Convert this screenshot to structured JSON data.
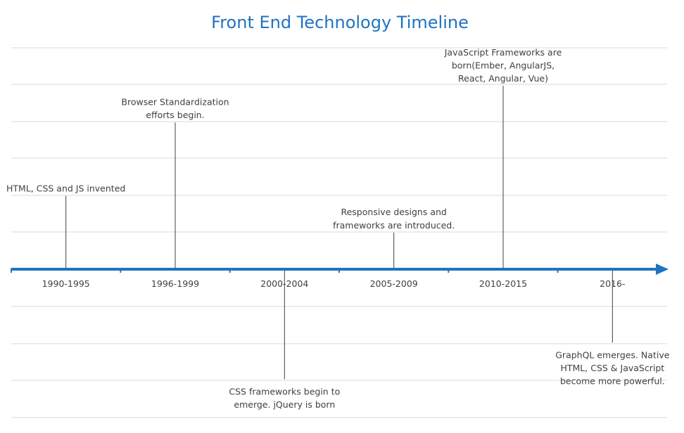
{
  "chart_data": {
    "type": "timeline",
    "title": "Front End Technology Timeline",
    "categories": [
      "1990-1995",
      "1996-1999",
      "2000-2004",
      "2005-2009",
      "2010-2015",
      "2016-"
    ],
    "events": [
      {
        "period": "1990-1995",
        "side": "above",
        "level": 2,
        "lines": [
          "HTML, CSS and JS invented"
        ]
      },
      {
        "period": "1996-1999",
        "side": "above",
        "level": 4,
        "lines": [
          "Browser Standardization",
          "efforts begin."
        ]
      },
      {
        "period": "2000-2004",
        "side": "below",
        "level": 3,
        "lines": [
          "CSS frameworks begin to",
          "emerge. jQuery is born"
        ]
      },
      {
        "period": "2005-2009",
        "side": "above",
        "level": 1,
        "lines": [
          "Responsive designs and",
          "frameworks are introduced."
        ]
      },
      {
        "period": "2010-2015",
        "side": "above",
        "level": 5,
        "lines": [
          "JavaScript Frameworks are",
          "born(Ember, AngularJS,",
          "React, Angular, Vue)"
        ]
      },
      {
        "period": "2016-",
        "side": "below",
        "level": 2,
        "lines": [
          "GraphQL emerges. Native",
          "HTML, CSS & JavaScript",
          "become more powerful."
        ]
      }
    ],
    "grid": true,
    "colors": {
      "title": "#1f73c1",
      "axis": "#1f73c1",
      "connector": "#404040",
      "text": "#404040",
      "grid": "#d9d9d9"
    }
  }
}
